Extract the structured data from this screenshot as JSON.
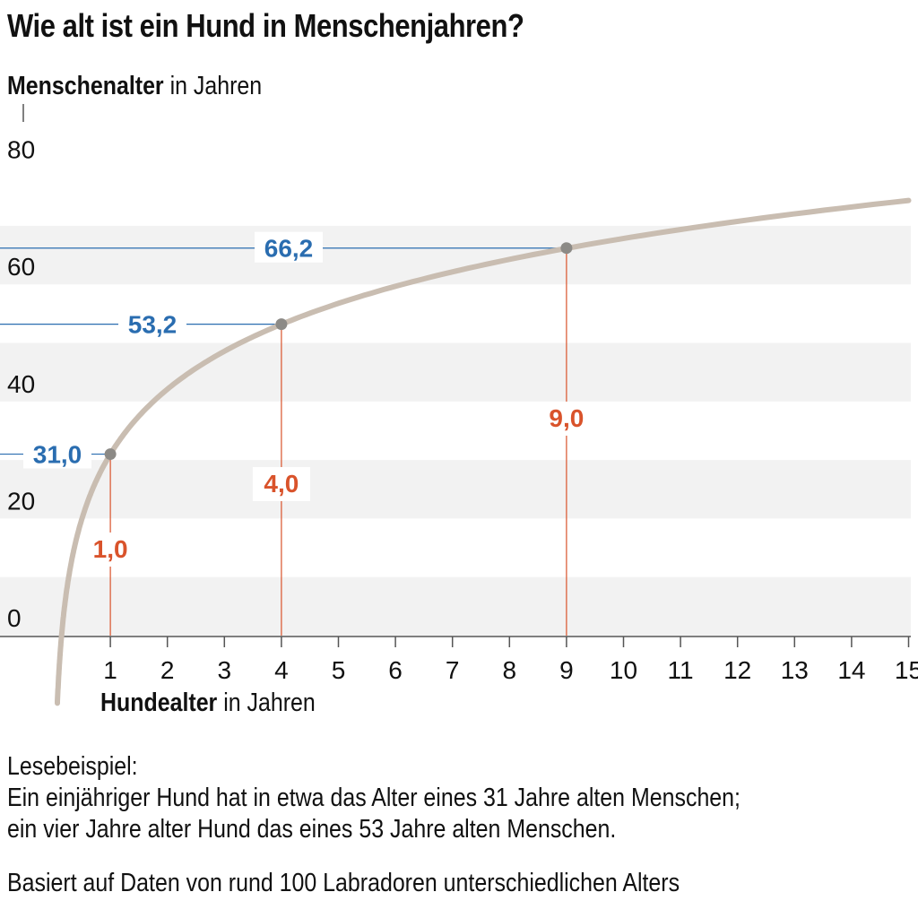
{
  "title": "Wie alt ist ein Hund in Menschenjahren?",
  "y_axis": {
    "bold": "Menschenalter",
    "rest": " in Jahren"
  },
  "x_axis": {
    "bold": "Hundealter",
    "rest": " in Jahren"
  },
  "notes": {
    "example_heading": "Lesebeispiel:",
    "example_line1": "Ein einjähriger Hund hat in etwa das Alter eines 31 Jahre alten Menschen;",
    "example_line2": "ein vier Jahre alter Hund das eines 53 Jahre alten Menschen.",
    "source": "Basiert auf Daten von rund 100 Labradoren unterschiedlichen Alters"
  },
  "colors": {
    "curve": "#c9bdb1",
    "band": "#f2f2f2",
    "human": "#2a6db0",
    "dog": "#d9532b",
    "marker": "#8c8a86"
  },
  "chart_data": {
    "type": "line",
    "title": "Wie alt ist ein Hund in Menschenjahren?",
    "xlabel": "Hundealter in Jahren",
    "ylabel": "Menschenalter in Jahren",
    "xlim": [
      0,
      15
    ],
    "ylim": [
      0,
      85
    ],
    "x_ticks": [
      "1",
      "2",
      "3",
      "4",
      "5",
      "6",
      "7",
      "8",
      "9",
      "10",
      "11",
      "12",
      "13",
      "14",
      "15"
    ],
    "y_ticks": [
      "0",
      "20",
      "40",
      "60",
      "80"
    ],
    "series": [
      {
        "name": "Menschenalter",
        "formula": "16 * ln(dog_age) + 31",
        "x_start": 0.07,
        "x_end": 15
      }
    ],
    "highlights": [
      {
        "dog_age": 1,
        "human_age": 31.0,
        "dog_label": "1,0",
        "human_label": "31,0"
      },
      {
        "dog_age": 4,
        "human_age": 53.2,
        "dog_label": "4,0",
        "human_label": "53,2"
      },
      {
        "dog_age": 9,
        "human_age": 66.2,
        "dog_label": "9,0",
        "human_label": "66,2"
      }
    ]
  }
}
